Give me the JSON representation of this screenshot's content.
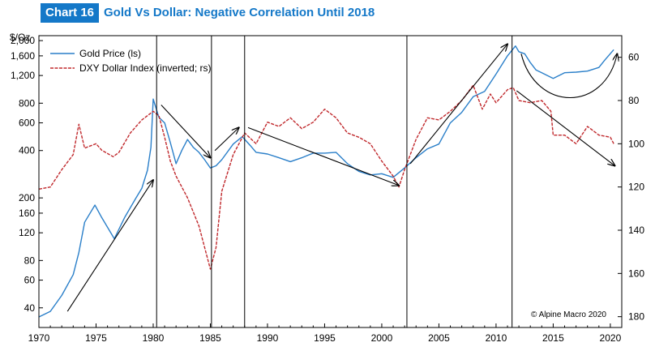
{
  "header": {
    "tag": "Chart 16",
    "title": "Gold Vs Dollar: Negative Correlation Until 2018"
  },
  "colors": {
    "accent": "#1478c8",
    "gold": "#2a7fc9",
    "dxy": "#c0282c"
  },
  "chart_data": {
    "type": "line",
    "left_unit": "$/Oz",
    "left_axis": {
      "scale": "log",
      "range": [
        30,
        2150
      ],
      "ticks": [
        2000,
        1600,
        1200,
        800,
        600,
        400,
        200,
        160,
        120,
        80,
        60,
        40
      ]
    },
    "right_axis": {
      "scale": "linear",
      "inverted": true,
      "range": [
        50,
        185
      ],
      "ticks": [
        60,
        80,
        100,
        120,
        140,
        160,
        180
      ]
    },
    "x_axis": {
      "range": [
        1970,
        2021
      ],
      "ticks": [
        1970,
        1975,
        1980,
        1985,
        1990,
        1995,
        2000,
        2005,
        2010,
        2015,
        2020
      ]
    },
    "legend": {
      "placement": "top-left",
      "entries": [
        "Gold Price (ls)",
        "DXY Dollar Index (inverted; rs)"
      ]
    },
    "credit": "© Alpine Macro 2020",
    "vertical_lines": [
      1980.3,
      1985.1,
      1988.0,
      2002.2,
      2011.4
    ],
    "series": [
      {
        "name": "Gold Price (ls)",
        "axis": "left",
        "points": [
          [
            1970.0,
            35
          ],
          [
            1971.0,
            38
          ],
          [
            1972.0,
            48
          ],
          [
            1973.0,
            65
          ],
          [
            1973.5,
            90
          ],
          [
            1974.0,
            140
          ],
          [
            1974.9,
            180
          ],
          [
            1975.5,
            150
          ],
          [
            1976.6,
            110
          ],
          [
            1977.5,
            150
          ],
          [
            1978.5,
            200
          ],
          [
            1979.0,
            230
          ],
          [
            1979.5,
            300
          ],
          [
            1979.8,
            420
          ],
          [
            1980.0,
            850
          ],
          [
            1980.5,
            650
          ],
          [
            1981.0,
            600
          ],
          [
            1981.5,
            450
          ],
          [
            1982.0,
            330
          ],
          [
            1982.5,
            400
          ],
          [
            1983.0,
            470
          ],
          [
            1983.5,
            420
          ],
          [
            1984.0,
            390
          ],
          [
            1984.5,
            350
          ],
          [
            1985.0,
            310
          ],
          [
            1985.5,
            320
          ],
          [
            1986.0,
            350
          ],
          [
            1987.0,
            440
          ],
          [
            1987.8,
            490
          ],
          [
            1988.5,
            430
          ],
          [
            1989.0,
            390
          ],
          [
            1990.0,
            380
          ],
          [
            1991.0,
            360
          ],
          [
            1992.0,
            340
          ],
          [
            1993.0,
            360
          ],
          [
            1994.0,
            385
          ],
          [
            1995.0,
            385
          ],
          [
            1996.0,
            390
          ],
          [
            1997.0,
            330
          ],
          [
            1998.0,
            295
          ],
          [
            1999.0,
            280
          ],
          [
            2000.0,
            285
          ],
          [
            2001.0,
            270
          ],
          [
            2002.0,
            310
          ],
          [
            2003.0,
            360
          ],
          [
            2004.0,
            410
          ],
          [
            2005.0,
            440
          ],
          [
            2006.0,
            600
          ],
          [
            2007.0,
            700
          ],
          [
            2008.0,
            880
          ],
          [
            2009.0,
            950
          ],
          [
            2010.0,
            1225
          ],
          [
            2011.0,
            1600
          ],
          [
            2011.7,
            1850
          ],
          [
            2012.0,
            1700
          ],
          [
            2012.5,
            1650
          ],
          [
            2013.0,
            1450
          ],
          [
            2013.5,
            1300
          ],
          [
            2014.0,
            1250
          ],
          [
            2015.0,
            1150
          ],
          [
            2016.0,
            1250
          ],
          [
            2017.0,
            1260
          ],
          [
            2018.0,
            1280
          ],
          [
            2019.0,
            1350
          ],
          [
            2019.5,
            1500
          ],
          [
            2020.3,
            1750
          ]
        ]
      },
      {
        "name": "DXY Dollar Index (inverted; rs)",
        "axis": "right",
        "points": [
          [
            1970.0,
            121
          ],
          [
            1971.0,
            120
          ],
          [
            1972.0,
            112
          ],
          [
            1973.0,
            105
          ],
          [
            1973.5,
            91
          ],
          [
            1974.0,
            102
          ],
          [
            1975.0,
            100
          ],
          [
            1975.5,
            103
          ],
          [
            1976.5,
            106
          ],
          [
            1977.0,
            104
          ],
          [
            1978.0,
            95
          ],
          [
            1979.0,
            89
          ],
          [
            1980.0,
            85
          ],
          [
            1980.5,
            87
          ],
          [
            1981.0,
            97
          ],
          [
            1981.5,
            108
          ],
          [
            1982.0,
            115
          ],
          [
            1983.0,
            125
          ],
          [
            1984.0,
            138
          ],
          [
            1985.0,
            158
          ],
          [
            1985.5,
            148
          ],
          [
            1986.0,
            122
          ],
          [
            1987.0,
            105
          ],
          [
            1988.0,
            95
          ],
          [
            1989.0,
            100
          ],
          [
            1990.0,
            90
          ],
          [
            1991.0,
            92
          ],
          [
            1992.0,
            88
          ],
          [
            1993.0,
            93
          ],
          [
            1994.0,
            90
          ],
          [
            1995.0,
            84
          ],
          [
            1996.0,
            88
          ],
          [
            1997.0,
            95
          ],
          [
            1998.0,
            97
          ],
          [
            1999.0,
            100
          ],
          [
            2000.0,
            108
          ],
          [
            2001.0,
            115
          ],
          [
            2001.5,
            120
          ],
          [
            2002.0,
            112
          ],
          [
            2003.0,
            98
          ],
          [
            2004.0,
            88
          ],
          [
            2005.0,
            89
          ],
          [
            2006.0,
            85
          ],
          [
            2007.0,
            80
          ],
          [
            2008.0,
            73
          ],
          [
            2008.8,
            84
          ],
          [
            2009.5,
            77
          ],
          [
            2010.0,
            81
          ],
          [
            2011.0,
            75
          ],
          [
            2011.5,
            74
          ],
          [
            2012.0,
            80
          ],
          [
            2013.0,
            81
          ],
          [
            2014.0,
            80
          ],
          [
            2014.8,
            85
          ],
          [
            2015.0,
            96
          ],
          [
            2016.0,
            96
          ],
          [
            2017.0,
            100
          ],
          [
            2018.0,
            92
          ],
          [
            2018.5,
            94
          ],
          [
            2019.0,
            96
          ],
          [
            2020.0,
            97
          ],
          [
            2020.3,
            100
          ]
        ]
      }
    ],
    "annotation_arrows": [
      [
        [
          1972.5,
          38
        ],
        [
          1980.0,
          260
        ]
      ],
      [
        [
          1980.7,
          780
        ],
        [
          1985.0,
          360
        ]
      ],
      [
        [
          1985.4,
          400
        ],
        [
          1987.5,
          560
        ]
      ],
      [
        [
          1988.3,
          560
        ],
        [
          2001.5,
          240
        ]
      ],
      [
        [
          2002.5,
          330
        ],
        [
          2011.0,
          1900
        ]
      ],
      [
        [
          2011.8,
          960
        ],
        [
          2020.4,
          320
        ]
      ]
    ]
  }
}
